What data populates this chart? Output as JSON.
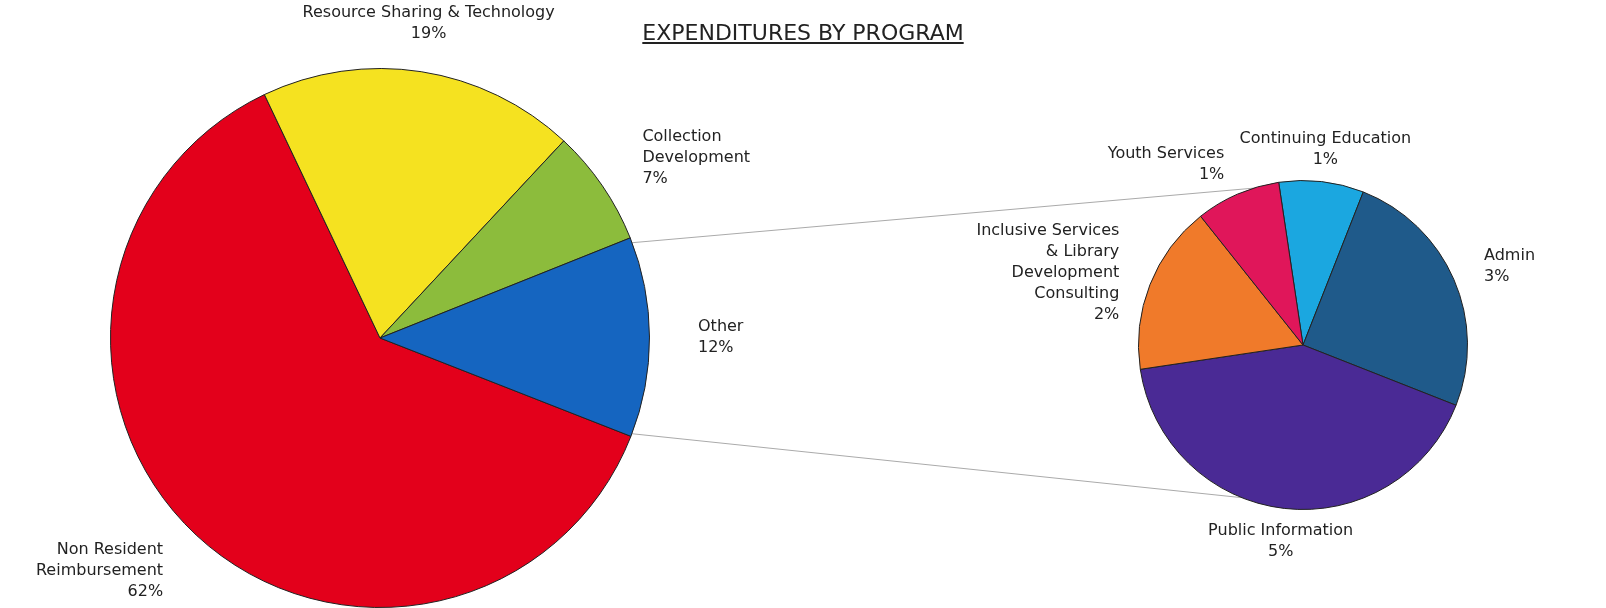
{
  "chart_data": [
    {
      "type": "pie",
      "title": "EXPENDITURES BY PROGRAM",
      "categories": [
        "Non Resident Reimbursement",
        "Resource Sharing & Technology",
        "Collection Development",
        "Other"
      ],
      "values": [
        62,
        19,
        7,
        12
      ],
      "value_labels": [
        "62%",
        "19%",
        "7%",
        "12%"
      ],
      "colors": [
        "#e3001b",
        "#f5e220",
        "#8cbc3c",
        "#1565c0"
      ]
    },
    {
      "type": "pie",
      "categories": [
        "Continuing Education",
        "Admin",
        "Public Information",
        "Inclusive Services & Library Development Consulting",
        "Youth Services"
      ],
      "values": [
        1,
        3,
        5,
        2,
        1
      ],
      "value_labels": [
        "1%",
        "3%",
        "5%",
        "2%",
        "1%"
      ],
      "colors": [
        "#1ba7e0",
        "#1f5a8a",
        "#4a2a95",
        "#f07a2a",
        "#e0165a"
      ]
    }
  ]
}
